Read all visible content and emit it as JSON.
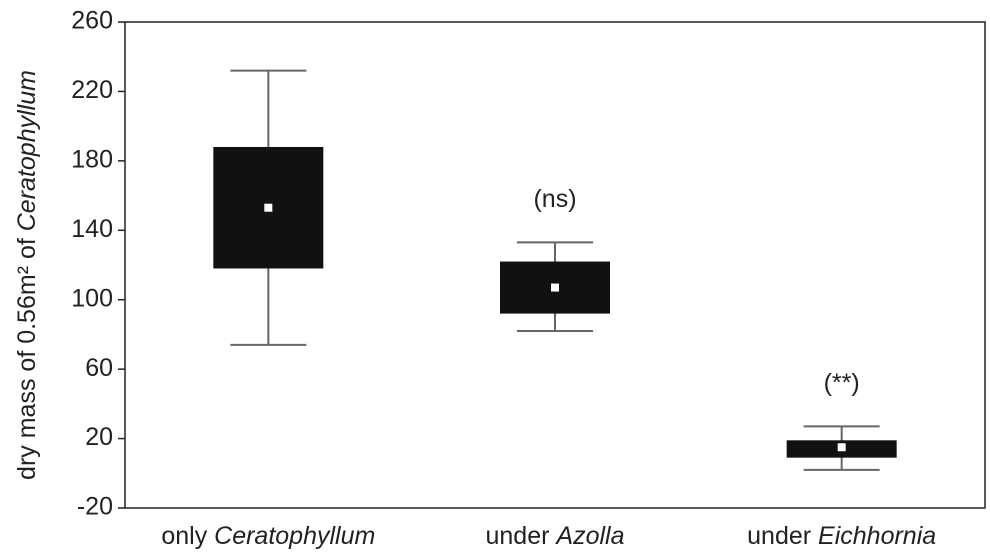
{
  "chart_data": {
    "type": "box",
    "y_label": "dry mass of 0.56m² of Ceratophyllum",
    "categories": [
      "only Ceratophyllum",
      "under Azolla",
      "under Eichhornia"
    ],
    "boxes": [
      {
        "low": 74,
        "q1": 118,
        "median": 153,
        "q3": 188,
        "high": 232
      },
      {
        "low": 82,
        "q1": 92,
        "median": 107,
        "q3": 122,
        "high": 133,
        "annotation": "(ns)"
      },
      {
        "low": 2,
        "q1": 9,
        "median": 15,
        "q3": 19,
        "high": 27,
        "annotation": "(**)"
      }
    ],
    "color": "#111111",
    "ylim": [
      -20,
      260
    ],
    "yticks": [
      -20,
      20,
      60,
      100,
      140,
      180,
      220,
      260
    ]
  }
}
